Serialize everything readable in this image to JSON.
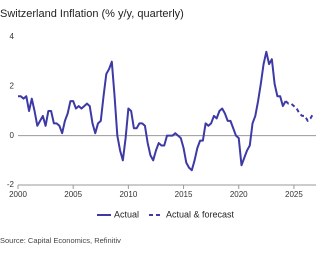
{
  "chart_data": {
    "type": "line",
    "title": "Switzerland Inflation (% y/y, quarterly)",
    "source": "Source: Capital Economics, Refinitiv",
    "xlim": [
      2000,
      2027
    ],
    "xticks": [
      2000,
      2005,
      2010,
      2015,
      2020,
      2025
    ],
    "ylim": [
      -2,
      4
    ],
    "yticks": [
      -2,
      0,
      2,
      4
    ],
    "series": [
      {
        "name": "Actual",
        "color": "#3d3aa6",
        "dash": false,
        "x": [
          2000,
          2000.25,
          2000.5,
          2000.75,
          2001,
          2001.25,
          2001.5,
          2001.75,
          2002,
          2002.25,
          2002.5,
          2002.75,
          2003,
          2003.25,
          2003.5,
          2003.75,
          2004,
          2004.25,
          2004.5,
          2004.75,
          2005,
          2005.25,
          2005.5,
          2005.75,
          2006,
          2006.25,
          2006.5,
          2006.75,
          2007,
          2007.25,
          2007.5,
          2007.75,
          2008,
          2008.25,
          2008.5,
          2008.75,
          2009,
          2009.25,
          2009.5,
          2009.75,
          2010,
          2010.25,
          2010.5,
          2010.75,
          2011,
          2011.25,
          2011.5,
          2011.75,
          2012,
          2012.25,
          2012.5,
          2012.75,
          2013,
          2013.25,
          2013.5,
          2013.75,
          2014,
          2014.25,
          2014.5,
          2014.75,
          2015,
          2015.25,
          2015.5,
          2015.75,
          2016,
          2016.25,
          2016.5,
          2016.75,
          2017,
          2017.25,
          2017.5,
          2017.75,
          2018,
          2018.25,
          2018.5,
          2018.75,
          2019,
          2019.25,
          2019.5,
          2019.75,
          2020,
          2020.25,
          2020.5,
          2020.75,
          2021,
          2021.25,
          2021.5,
          2021.75,
          2022,
          2022.25,
          2022.5,
          2022.75,
          2023,
          2023.25,
          2023.5,
          2023.75,
          2024,
          2024.25
        ],
        "values": [
          1.6,
          1.6,
          1.5,
          1.6,
          1.0,
          1.5,
          1.0,
          0.4,
          0.6,
          0.8,
          0.4,
          1.0,
          1.0,
          0.5,
          0.5,
          0.4,
          0.1,
          0.6,
          0.9,
          1.4,
          1.4,
          1.1,
          1.2,
          1.1,
          1.2,
          1.3,
          1.2,
          0.5,
          0.1,
          0.5,
          0.6,
          1.6,
          2.5,
          2.7,
          3.0,
          1.6,
          0.0,
          -0.6,
          -1.0,
          -0.1,
          1.1,
          1.0,
          0.3,
          0.3,
          0.5,
          0.5,
          0.4,
          -0.3,
          -0.8,
          -1.0,
          -0.6,
          -0.3,
          -0.4,
          -0.4,
          0.0,
          0.0,
          0.0,
          0.1,
          0.0,
          -0.1,
          -0.5,
          -1.1,
          -1.3,
          -1.4,
          -1.0,
          -0.5,
          -0.2,
          -0.2,
          0.5,
          0.4,
          0.5,
          0.8,
          0.7,
          1.0,
          1.1,
          0.9,
          0.6,
          0.6,
          0.3,
          0.0,
          -0.1,
          -1.2,
          -0.9,
          -0.6,
          -0.4,
          0.5,
          0.8,
          1.4,
          2.1,
          2.9,
          3.4,
          2.9,
          3.1,
          2.1,
          1.6,
          1.6,
          1.2,
          1.4
        ]
      },
      {
        "name": "Actual & forecast",
        "color": "#3d3aa6",
        "dash": true,
        "x": [
          2024.25,
          2024.5,
          2024.75,
          2025,
          2025.25,
          2025.5,
          2025.75,
          2026,
          2026.25,
          2026.5,
          2026.75
        ],
        "values": [
          1.4,
          1.3,
          1.3,
          1.2,
          1.1,
          0.9,
          0.8,
          0.8,
          0.6,
          0.7,
          0.9
        ]
      }
    ]
  }
}
